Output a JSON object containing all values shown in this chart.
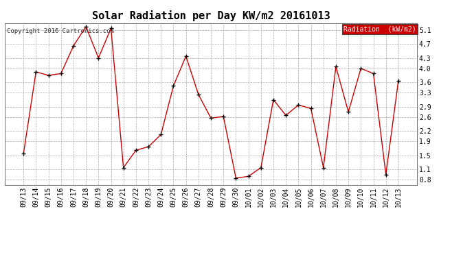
{
  "title": "Solar Radiation per Day KW/m2 20161013",
  "copyright": "Copyright 2016 Cartronics.com",
  "legend_label": "Radiation  (kW/m2)",
  "x_labels": [
    "09/13",
    "09/14",
    "09/15",
    "09/16",
    "09/17",
    "09/18",
    "09/19",
    "09/20",
    "09/21",
    "09/22",
    "09/23",
    "09/24",
    "09/25",
    "09/26",
    "09/27",
    "09/28",
    "09/29",
    "09/30",
    "10/01",
    "10/02",
    "10/03",
    "10/04",
    "10/05",
    "10/06",
    "10/07",
    "10/08",
    "10/09",
    "10/10",
    "10/11",
    "10/12",
    "10/13"
  ],
  "y_values": [
    1.55,
    3.9,
    3.8,
    3.85,
    4.65,
    5.2,
    4.3,
    5.15,
    1.15,
    1.65,
    1.75,
    2.1,
    3.5,
    4.35,
    3.25,
    2.57,
    2.62,
    0.85,
    0.9,
    1.15,
    3.1,
    2.65,
    2.95,
    2.85,
    1.15,
    4.05,
    2.75,
    4.0,
    3.85,
    0.95,
    3.65
  ],
  "line_color": "#cc0000",
  "marker_color": "#000000",
  "background_color": "#ffffff",
  "grid_color": "#aaaaaa",
  "yticks": [
    0.8,
    1.1,
    1.5,
    1.9,
    2.2,
    2.6,
    2.9,
    3.3,
    3.6,
    4.0,
    4.3,
    4.7,
    5.1
  ],
  "ylim": [
    0.65,
    5.3
  ],
  "legend_bg": "#cc0000",
  "legend_text_color": "#ffffff",
  "title_fontsize": 11,
  "tick_fontsize": 7,
  "copyright_fontsize": 6.5
}
